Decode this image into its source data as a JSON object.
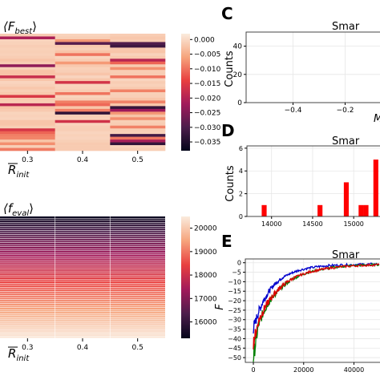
{
  "chart_data": [
    {
      "type": "heatmap",
      "title": "⟨F",
      "title_sub": "best",
      "title_close": "⟩",
      "xlabel": "R",
      "xlabel_sub": "init",
      "categories": [
        "0.3",
        "0.4",
        "0.5"
      ],
      "colormap": "rocket",
      "colorbar": {
        "ticks": [
          "0.000",
          "−0.005",
          "−0.010",
          "−0.015",
          "−0.020",
          "−0.025",
          "−0.030",
          "−0.035"
        ],
        "tick_values": [
          0.0,
          -0.005,
          -0.01,
          -0.015,
          -0.02,
          -0.025,
          -0.03,
          -0.035
        ],
        "vmin": -0.038,
        "vmax": 0.002
      },
      "rows_visible": 42,
      "note_values": "cells are mostly near 0 with scattered darker rows"
    },
    {
      "type": "heatmap",
      "title": "⟨f",
      "title_sub": "eval",
      "title_close": "⟩",
      "xlabel": "R",
      "xlabel_sub": "init",
      "categories": [
        "0.3",
        "0.4",
        "0.5"
      ],
      "colormap": "rocket",
      "colorbar": {
        "ticks": [
          "20000",
          "19000",
          "18000",
          "17000",
          "16000"
        ],
        "tick_values": [
          20000,
          19000,
          18000,
          17000,
          16000
        ],
        "vmin": 15300,
        "vmax": 20500
      },
      "rows_visible": 60
    },
    {
      "type": "bar",
      "panel_label": "C",
      "title": "Smar",
      "ylabel": "Counts",
      "xlabel": "M",
      "xticks": [
        "−0.4",
        "−0.2"
      ],
      "xtick_values": [
        -0.4,
        -0.2
      ],
      "yticks": [
        "0",
        "20",
        "40"
      ],
      "ytick_values": [
        0,
        20,
        40
      ],
      "xlim": [
        -0.58,
        -0.06
      ],
      "ylim": [
        0,
        50
      ],
      "grid": true,
      "values": []
    },
    {
      "type": "bar",
      "panel_label": "D",
      "title": "Smar",
      "ylabel": "Counts",
      "xlabel": "",
      "xticks": [
        "14000",
        "14500",
        "15000"
      ],
      "xtick_values": [
        14000,
        14500,
        15000
      ],
      "yticks": [
        "0",
        "2",
        "4",
        "6"
      ],
      "ytick_values": [
        0,
        2,
        4,
        6
      ],
      "xlim": [
        13700,
        15340
      ],
      "ylim": [
        0,
        6.2
      ],
      "grid": true,
      "bar_color": "#ff0000",
      "bars": [
        {
          "x0": 13880,
          "x1": 13940,
          "count": 1
        },
        {
          "x0": 14560,
          "x1": 14620,
          "count": 1
        },
        {
          "x0": 14880,
          "x1": 14940,
          "count": 3
        },
        {
          "x0": 15060,
          "x1": 15120,
          "count": 1
        },
        {
          "x0": 15120,
          "x1": 15180,
          "count": 1
        },
        {
          "x0": 15240,
          "x1": 15300,
          "count": 5
        }
      ]
    },
    {
      "type": "line",
      "panel_label": "E",
      "title": "Smar",
      "ylabel": "F",
      "xticks": [
        "0",
        "20000",
        "40000"
      ],
      "xtick_values": [
        0,
        20000,
        40000
      ],
      "yticks": [
        "0",
        "−5",
        "−10",
        "−15",
        "−20",
        "−25",
        "−30",
        "−35",
        "−40",
        "−45",
        "−50"
      ],
      "ytick_values": [
        0,
        -5,
        -10,
        -15,
        -20,
        -25,
        -30,
        -35,
        -40,
        -45,
        -50
      ],
      "xlim": [
        -3200,
        51000
      ],
      "ylim": [
        -52.5,
        2
      ],
      "grid": true,
      "series": [
        {
          "color": "#0000cc",
          "x": [
            0,
            2000,
            4000,
            6000,
            8000,
            10000,
            12000,
            15000,
            18000,
            22000,
            26000,
            30000,
            35000,
            40000,
            45000,
            50000
          ],
          "y": [
            -35,
            -26,
            -20,
            -15.5,
            -12,
            -9.5,
            -7.5,
            -5.5,
            -4,
            -2.8,
            -2,
            -1.5,
            -1.2,
            -1,
            -0.8,
            -0.7
          ]
        },
        {
          "color": "#008000",
          "x": [
            0,
            2000,
            4000,
            6000,
            8000,
            10000,
            12000,
            15000,
            18000,
            22000,
            26000,
            30000,
            35000,
            40000,
            45000,
            50000
          ],
          "y": [
            -50,
            -33,
            -26,
            -21,
            -17.5,
            -14.5,
            -12,
            -9,
            -7,
            -5,
            -3.8,
            -2.8,
            -2,
            -1.5,
            -1.2,
            -1
          ]
        },
        {
          "color": "#dd0000",
          "x": [
            0,
            2000,
            4000,
            6000,
            8000,
            10000,
            12000,
            15000,
            18000,
            22000,
            26000,
            30000,
            35000,
            40000,
            45000,
            50000
          ],
          "y": [
            -42,
            -31,
            -25,
            -20.5,
            -17,
            -14,
            -11.5,
            -8.8,
            -6.8,
            -5,
            -3.8,
            -2.9,
            -2.1,
            -1.6,
            -1.3,
            -1.1
          ]
        }
      ]
    }
  ]
}
